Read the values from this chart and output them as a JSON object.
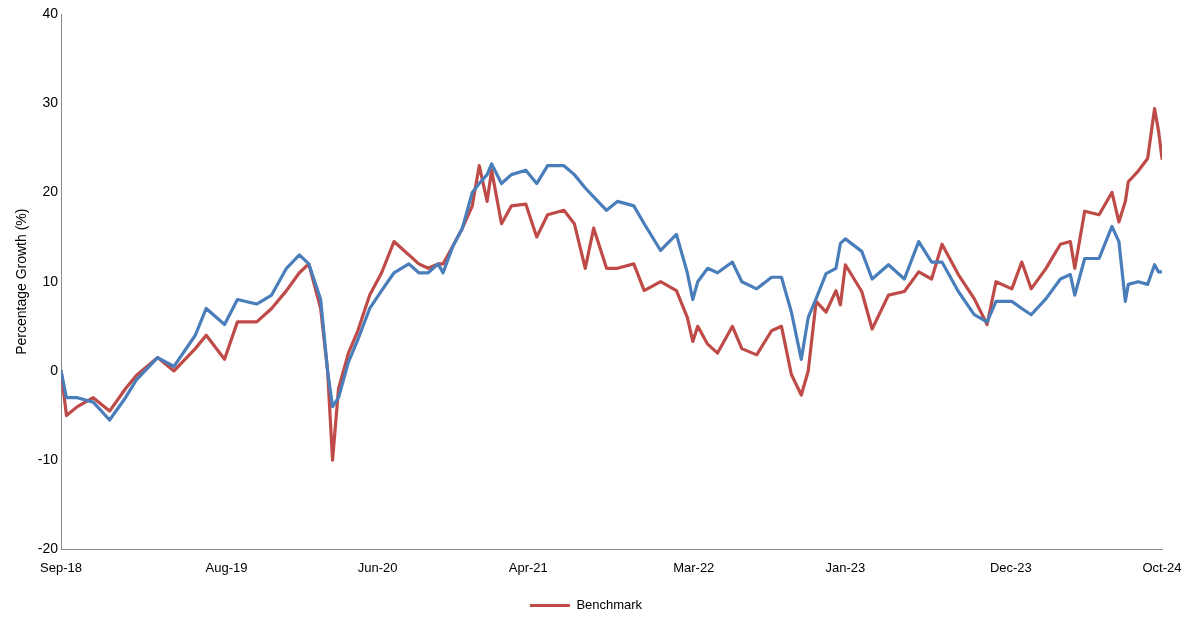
{
  "chart_data": {
    "type": "line",
    "ylabel": "Percentage Growth (%)",
    "x": [
      "2018-09-01",
      "2018-09-12",
      "2018-10-04",
      "2018-11-05",
      "2018-12-08",
      "2019-01-09",
      "2019-01-31",
      "2019-03-15",
      "2019-04-17",
      "2019-05-30",
      "2019-06-21",
      "2019-07-28",
      "2019-08-23",
      "2019-10-01",
      "2019-10-31",
      "2019-11-30",
      "2019-12-26",
      "2020-01-14",
      "2020-02-07",
      "2020-02-21",
      "2020-03-02",
      "2020-03-14",
      "2020-04-03",
      "2020-04-22",
      "2020-05-16",
      "2020-06-09",
      "2020-07-04",
      "2020-08-03",
      "2020-08-23",
      "2020-09-11",
      "2020-10-01",
      "2020-10-11",
      "2020-10-31",
      "2020-11-19",
      "2020-12-09",
      "2020-12-23",
      "2021-01-08",
      "2021-01-17",
      "2021-02-06",
      "2021-02-26",
      "2021-03-27",
      "2021-04-18",
      "2021-05-10",
      "2021-06-12",
      "2021-07-03",
      "2021-07-25",
      "2021-08-11",
      "2021-09-06",
      "2021-09-28",
      "2021-10-31",
      "2021-11-21",
      "2021-12-24",
      "2022-01-25",
      "2022-02-16",
      "2022-02-27",
      "2022-03-09",
      "2022-03-29",
      "2022-04-18",
      "2022-05-18",
      "2022-06-06",
      "2022-07-06",
      "2022-08-05",
      "2022-08-25",
      "2022-09-14",
      "2022-10-04",
      "2022-10-18",
      "2022-11-03",
      "2022-11-23",
      "2022-12-13",
      "2022-12-22",
      "2023-01-01",
      "2023-02-03",
      "2023-02-24",
      "2023-03-29",
      "2023-04-30",
      "2023-05-29",
      "2023-06-24",
      "2023-07-15",
      "2023-08-17",
      "2023-09-18",
      "2023-10-14",
      "2023-11-01",
      "2023-12-03",
      "2023-12-23",
      "2024-01-11",
      "2024-02-10",
      "2024-03-10",
      "2024-03-30",
      "2024-04-08",
      "2024-04-28",
      "2024-05-27",
      "2024-06-22",
      "2024-07-06",
      "2024-07-19",
      "2024-07-25",
      "2024-08-14",
      "2024-09-02",
      "2024-09-16",
      "2024-09-24",
      "2024-10-01"
    ],
    "series": [
      {
        "color": "#4a7ebb",
        "values": [
          0,
          -3,
          -3,
          -3.5,
          -5.5,
          -3,
          -1,
          1.5,
          0.5,
          4,
          7,
          5.2,
          8,
          7.5,
          8.5,
          11.5,
          13,
          12,
          8,
          0,
          -4,
          -3,
          1,
          3.5,
          7,
          9,
          11,
          12,
          11,
          11,
          12,
          11,
          14,
          16,
          20,
          21,
          22,
          23.2,
          21,
          22,
          22.5,
          21,
          23,
          23,
          22,
          20.5,
          19.5,
          18,
          19,
          18.5,
          16.5,
          13.5,
          15.3,
          11,
          8,
          10,
          11.5,
          11,
          12.2,
          10,
          9.2,
          10.5,
          10.5,
          6.6,
          1.3,
          6,
          8.1,
          10.9,
          11.5,
          14.3,
          14.8,
          13.4,
          10.3,
          11.9,
          10.3,
          14.5,
          12.2,
          12.2,
          8.9,
          6.3,
          5.5,
          7.8,
          7.8,
          7,
          6.3,
          8.1,
          10.3,
          10.8,
          8.5,
          12.6,
          12.6,
          16.2,
          14.5,
          7.8,
          9.7,
          10,
          9.7,
          11.9,
          11.1,
          11.1
        ]
      },
      {
        "name": "Benchmark",
        "color": "#be4b48",
        "values": [
          0,
          -5,
          -4,
          -3,
          -4.5,
          -2,
          -0.5,
          1.5,
          0,
          2.5,
          4,
          1.3,
          5.5,
          5.5,
          7,
          9,
          11,
          12,
          7,
          0,
          -10,
          -2,
          2,
          4.5,
          8.5,
          11,
          14.5,
          13,
          12,
          11.5,
          12,
          12,
          14,
          16,
          18.5,
          23,
          19,
          22.5,
          16.5,
          18.5,
          18.7,
          15,
          17.5,
          18,
          16.5,
          11.5,
          16,
          11.5,
          11.5,
          12,
          9,
          10,
          9,
          6,
          3.3,
          5,
          3,
          2,
          5,
          2.5,
          1.8,
          4.5,
          5,
          -0.4,
          -2.7,
          0,
          7.8,
          6.6,
          9,
          7.4,
          11.9,
          8.9,
          4.7,
          8.5,
          8.9,
          11.1,
          10.3,
          14.2,
          10.8,
          8.1,
          5.2,
          10,
          9.2,
          12.2,
          9.2,
          11.5,
          14.2,
          14.5,
          11.5,
          17.9,
          17.5,
          20,
          16.7,
          19,
          21.2,
          22.4,
          23.8,
          29.4,
          26.9,
          23.8
        ]
      }
    ],
    "xlim": [
      "2018-09-01",
      "2024-10-01"
    ],
    "xticks": [
      {
        "value": "2018-09-01",
        "label": "Sep-18"
      },
      {
        "value": "2019-08-01",
        "label": "Aug-19"
      },
      {
        "value": "2020-06-01",
        "label": "Jun-20"
      },
      {
        "value": "2021-04-01",
        "label": "Apr-21"
      },
      {
        "value": "2022-03-01",
        "label": "Mar-22"
      },
      {
        "value": "2023-01-01",
        "label": "Jan-23"
      },
      {
        "value": "2023-12-01",
        "label": "Dec-23"
      },
      {
        "value": "2024-10-01",
        "label": "Oct-24"
      }
    ],
    "ylim": [
      -20,
      40
    ],
    "yticks": [
      -20,
      -10,
      0,
      10,
      20,
      30,
      40
    ],
    "grid": false,
    "legend": "bottom",
    "marker": "none",
    "line_style": "solid"
  }
}
